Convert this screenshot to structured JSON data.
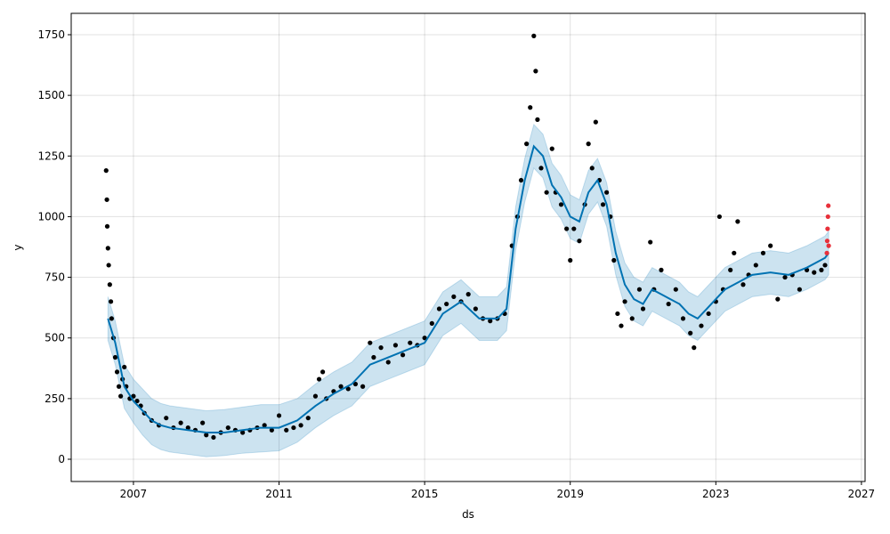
{
  "chart_data": {
    "type": "forecast",
    "xlabel": "ds",
    "ylabel": "y",
    "xlim": [
      2005.29,
      2027.1
    ],
    "ylim": [
      -91.7,
      1838
    ],
    "xticks": [
      2007,
      2011,
      2015,
      2019,
      2023,
      2027
    ],
    "yticks": [
      0,
      250,
      500,
      750,
      1000,
      1250,
      1500,
      1750
    ],
    "grid": true,
    "forecast": {
      "line_color": "#0072B2",
      "band_color": "#0072B2",
      "x": [
        2006.3,
        2006.5,
        2006.75,
        2007,
        2007.25,
        2007.5,
        2007.75,
        2008,
        2008.5,
        2009,
        2009.5,
        2010,
        2010.5,
        2011,
        2011.5,
        2012,
        2012.5,
        2013,
        2013.5,
        2014,
        2014.5,
        2015,
        2015.5,
        2016,
        2016.5,
        2017,
        2017.25,
        2017.5,
        2017.75,
        2018,
        2018.25,
        2018.5,
        2018.75,
        2019,
        2019.25,
        2019.5,
        2019.75,
        2020,
        2020.25,
        2020.5,
        2020.75,
        2021,
        2021.25,
        2021.5,
        2021.75,
        2022,
        2022.25,
        2022.5,
        2022.75,
        2023,
        2023.25,
        2023.5,
        2023.75,
        2024,
        2024.5,
        2025,
        2025.5,
        2026,
        2026.1
      ],
      "yhat": [
        580,
        480,
        300,
        240,
        200,
        160,
        140,
        130,
        120,
        110,
        110,
        120,
        130,
        130,
        160,
        220,
        270,
        310,
        390,
        420,
        450,
        480,
        600,
        650,
        580,
        580,
        620,
        950,
        1150,
        1290,
        1250,
        1130,
        1080,
        1000,
        980,
        1100,
        1150,
        1050,
        850,
        720,
        660,
        640,
        700,
        680,
        660,
        640,
        600,
        580,
        620,
        660,
        700,
        720,
        740,
        760,
        770,
        760,
        790,
        830,
        850
      ],
      "lower": [
        490,
        390,
        210,
        150,
        100,
        60,
        40,
        30,
        20,
        10,
        15,
        25,
        30,
        35,
        70,
        130,
        180,
        220,
        300,
        330,
        360,
        390,
        510,
        560,
        490,
        490,
        530,
        860,
        1060,
        1200,
        1160,
        1040,
        990,
        910,
        890,
        1010,
        1060,
        960,
        760,
        630,
        570,
        550,
        610,
        590,
        570,
        550,
        510,
        490,
        530,
        570,
        610,
        630,
        650,
        670,
        680,
        670,
        700,
        740,
        760
      ],
      "upper": [
        670,
        570,
        390,
        330,
        290,
        250,
        230,
        220,
        210,
        200,
        205,
        215,
        225,
        225,
        250,
        310,
        360,
        400,
        480,
        510,
        540,
        570,
        690,
        740,
        670,
        670,
        710,
        1040,
        1240,
        1380,
        1340,
        1220,
        1170,
        1090,
        1070,
        1190,
        1240,
        1140,
        940,
        810,
        750,
        730,
        790,
        770,
        750,
        730,
        690,
        670,
        710,
        750,
        790,
        810,
        830,
        850,
        860,
        850,
        880,
        920,
        940
      ]
    },
    "observed": {
      "color": "#000000",
      "x": [
        2006.25,
        2006.27,
        2006.28,
        2006.3,
        2006.32,
        2006.35,
        2006.38,
        2006.4,
        2006.45,
        2006.5,
        2006.55,
        2006.6,
        2006.65,
        2006.7,
        2006.75,
        2006.8,
        2006.9,
        2007.0,
        2007.1,
        2007.2,
        2007.3,
        2007.5,
        2007.7,
        2007.9,
        2008.1,
        2008.3,
        2008.5,
        2008.7,
        2008.9,
        2009.0,
        2009.2,
        2009.4,
        2009.6,
        2009.8,
        2010.0,
        2010.2,
        2010.4,
        2010.6,
        2010.8,
        2011.0,
        2011.2,
        2011.4,
        2011.6,
        2011.8,
        2012.0,
        2012.1,
        2012.2,
        2012.3,
        2012.5,
        2012.7,
        2012.9,
        2013.1,
        2013.3,
        2013.5,
        2013.6,
        2013.8,
        2014.0,
        2014.2,
        2014.4,
        2014.6,
        2014.8,
        2015.0,
        2015.2,
        2015.4,
        2015.6,
        2015.8,
        2016.0,
        2016.2,
        2016.4,
        2016.6,
        2016.8,
        2017.0,
        2017.2,
        2017.4,
        2017.55,
        2017.65,
        2017.8,
        2017.9,
        2018.0,
        2018.05,
        2018.1,
        2018.2,
        2018.35,
        2018.5,
        2018.6,
        2018.75,
        2018.9,
        2019.0,
        2019.1,
        2019.25,
        2019.4,
        2019.5,
        2019.6,
        2019.7,
        2019.8,
        2019.9,
        2020.0,
        2020.1,
        2020.2,
        2020.3,
        2020.4,
        2020.5,
        2020.7,
        2020.9,
        2021.0,
        2021.2,
        2021.3,
        2021.5,
        2021.7,
        2021.9,
        2022.1,
        2022.3,
        2022.4,
        2022.6,
        2022.8,
        2023.0,
        2023.1,
        2023.2,
        2023.4,
        2023.5,
        2023.6,
        2023.75,
        2023.9,
        2024.1,
        2024.3,
        2024.5,
        2024.7,
        2024.9,
        2025.1,
        2025.3,
        2025.5,
        2025.7,
        2025.9,
        2026.0
      ],
      "values": [
        1190,
        1070,
        960,
        870,
        800,
        720,
        650,
        580,
        500,
        420,
        360,
        300,
        260,
        330,
        380,
        300,
        250,
        260,
        240,
        220,
        190,
        160,
        140,
        170,
        130,
        150,
        130,
        120,
        150,
        100,
        90,
        110,
        130,
        120,
        110,
        120,
        130,
        140,
        120,
        180,
        120,
        130,
        140,
        170,
        260,
        330,
        360,
        250,
        280,
        300,
        290,
        310,
        300,
        480,
        420,
        460,
        400,
        470,
        430,
        480,
        470,
        500,
        560,
        620,
        640,
        670,
        650,
        680,
        620,
        580,
        570,
        580,
        600,
        880,
        1000,
        1150,
        1300,
        1450,
        1745,
        1600,
        1400,
        1200,
        1100,
        1280,
        1100,
        1050,
        950,
        820,
        950,
        900,
        1050,
        1300,
        1200,
        1390,
        1150,
        1050,
        1100,
        1000,
        820,
        600,
        550,
        650,
        580,
        700,
        620,
        895,
        700,
        780,
        640,
        700,
        580,
        520,
        460,
        550,
        600,
        650,
        1000,
        700,
        780,
        850,
        980,
        720,
        760,
        800,
        850,
        880,
        660,
        750,
        760,
        700,
        780,
        770,
        780,
        800
      ]
    },
    "recent": {
      "color": "#e8303a",
      "x": [
        2026.05,
        2026.06,
        2026.07,
        2026.08,
        2026.09,
        2026.1
      ],
      "values": [
        850,
        900,
        950,
        1000,
        1045,
        880
      ]
    }
  }
}
